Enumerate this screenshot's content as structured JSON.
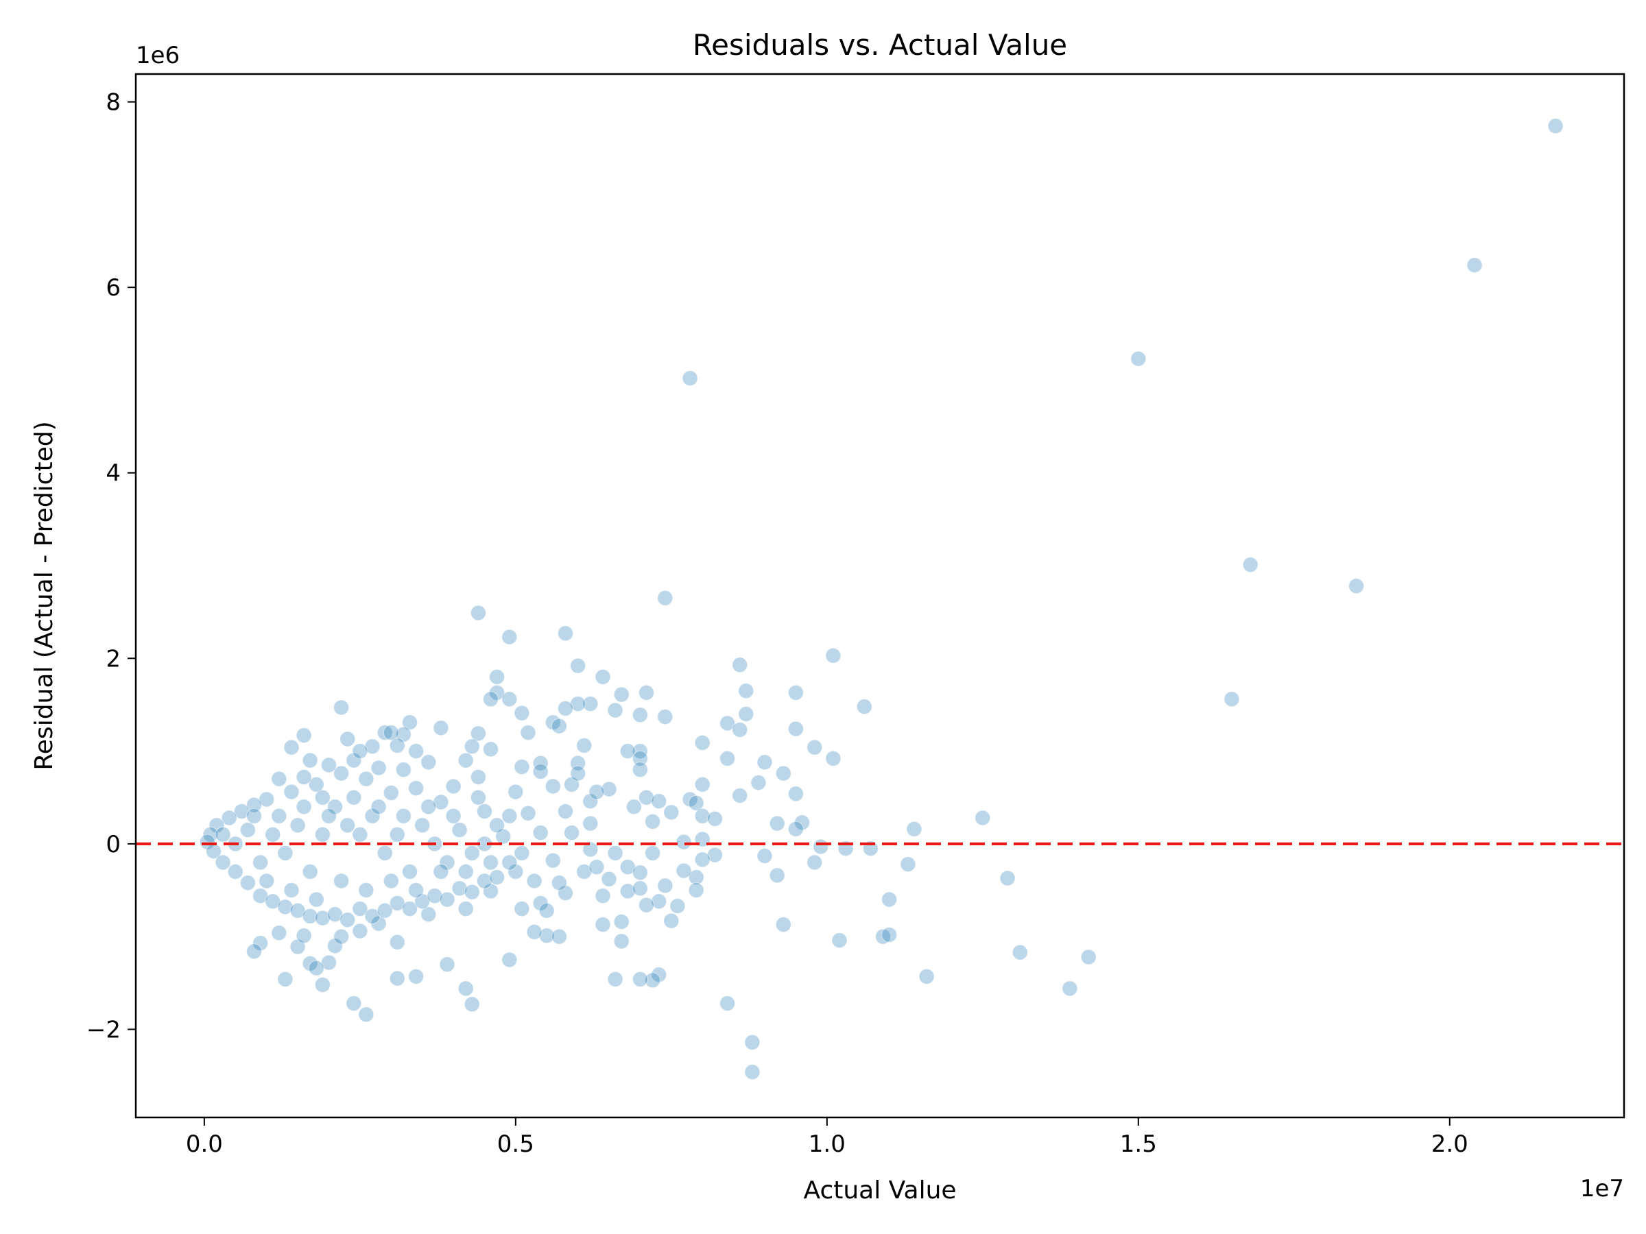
{
  "chart_data": {
    "type": "scatter",
    "title": "Residuals vs. Actual Value",
    "xlabel": "Actual Value",
    "ylabel": "Residual (Actual - Predicted)",
    "x_offset_label": "1e7",
    "y_offset_label": "1e6",
    "xlim": [
      -1100000,
      22800000
    ],
    "ylim": [
      -2950000,
      8300000
    ],
    "x_ticks": [
      {
        "value": 0,
        "label": "0.0"
      },
      {
        "value": 5000000,
        "label": "0.5"
      },
      {
        "value": 10000000,
        "label": "1.0"
      },
      {
        "value": 15000000,
        "label": "1.5"
      },
      {
        "value": 20000000,
        "label": "2.0"
      }
    ],
    "y_ticks": [
      {
        "value": -2000000,
        "label": "−2"
      },
      {
        "value": 0,
        "label": "0"
      },
      {
        "value": 2000000,
        "label": "2"
      },
      {
        "value": 4000000,
        "label": "4"
      },
      {
        "value": 6000000,
        "label": "6"
      },
      {
        "value": 8000000,
        "label": "8"
      }
    ],
    "grid": false,
    "point_color": "#1f77b4",
    "point_opacity": 0.3,
    "reference_line": {
      "y": 0,
      "color": "#ee1111",
      "style": "dashed"
    },
    "points": [
      [
        21700000,
        7740000
      ],
      [
        20400000,
        6240000
      ],
      [
        15000000,
        5230000
      ],
      [
        7800000,
        5020000
      ],
      [
        16800000,
        3010000
      ],
      [
        18500000,
        2780000
      ],
      [
        16500000,
        1560000
      ],
      [
        7400000,
        2650000
      ],
      [
        4400000,
        2490000
      ],
      [
        5800000,
        2270000
      ],
      [
        4900000,
        2230000
      ],
      [
        10100000,
        2030000
      ],
      [
        8600000,
        1930000
      ],
      [
        6000000,
        1920000
      ],
      [
        6400000,
        1800000
      ],
      [
        4700000,
        1800000
      ],
      [
        8700000,
        1650000
      ],
      [
        7100000,
        1630000
      ],
      [
        9500000,
        1630000
      ],
      [
        4700000,
        1630000
      ],
      [
        6700000,
        1610000
      ],
      [
        4600000,
        1560000
      ],
      [
        4900000,
        1560000
      ],
      [
        6200000,
        1510000
      ],
      [
        6000000,
        1510000
      ],
      [
        5800000,
        1460000
      ],
      [
        10600000,
        1480000
      ],
      [
        2200000,
        1470000
      ],
      [
        5100000,
        1410000
      ],
      [
        7000000,
        1390000
      ],
      [
        7400000,
        1370000
      ],
      [
        8700000,
        1400000
      ],
      [
        6600000,
        1440000
      ],
      [
        5600000,
        1310000
      ],
      [
        3300000,
        1310000
      ],
      [
        8400000,
        1300000
      ],
      [
        3800000,
        1250000
      ],
      [
        8600000,
        1230000
      ],
      [
        9500000,
        1240000
      ],
      [
        5700000,
        1270000
      ],
      [
        2900000,
        1200000
      ],
      [
        4400000,
        1190000
      ],
      [
        5200000,
        1200000
      ],
      [
        1600000,
        1170000
      ],
      [
        3200000,
        1180000
      ],
      [
        2300000,
        1130000
      ],
      [
        8000000,
        1090000
      ],
      [
        9800000,
        1040000
      ],
      [
        2700000,
        1050000
      ],
      [
        3100000,
        1060000
      ],
      [
        6100000,
        1060000
      ],
      [
        1400000,
        1040000
      ],
      [
        3400000,
        1000000
      ],
      [
        7000000,
        1000000
      ],
      [
        6800000,
        1000000
      ],
      [
        4300000,
        1050000
      ],
      [
        4600000,
        1020000
      ],
      [
        10100000,
        920000
      ],
      [
        8400000,
        920000
      ],
      [
        7000000,
        920000
      ],
      [
        9000000,
        880000
      ],
      [
        5400000,
        870000
      ],
      [
        6000000,
        870000
      ],
      [
        7000000,
        800000
      ],
      [
        9300000,
        760000
      ],
      [
        8900000,
        660000
      ],
      [
        8000000,
        640000
      ],
      [
        6500000,
        590000
      ],
      [
        8600000,
        520000
      ],
      [
        9500000,
        540000
      ],
      [
        7100000,
        500000
      ],
      [
        7800000,
        480000
      ],
      [
        7300000,
        460000
      ],
      [
        7900000,
        440000
      ],
      [
        6900000,
        400000
      ],
      [
        6200000,
        460000
      ],
      [
        5600000,
        620000
      ],
      [
        5900000,
        640000
      ],
      [
        7500000,
        340000
      ],
      [
        8000000,
        300000
      ],
      [
        8200000,
        270000
      ],
      [
        7200000,
        240000
      ],
      [
        9200000,
        220000
      ],
      [
        9600000,
        230000
      ],
      [
        12500000,
        280000
      ],
      [
        11400000,
        160000
      ],
      [
        9500000,
        160000
      ],
      [
        8000000,
        50000
      ],
      [
        7700000,
        20000
      ],
      [
        9900000,
        -30000
      ],
      [
        10300000,
        -50000
      ],
      [
        10700000,
        -50000
      ],
      [
        9000000,
        -130000
      ],
      [
        8200000,
        -120000
      ],
      [
        9800000,
        -200000
      ],
      [
        11300000,
        -220000
      ],
      [
        12900000,
        -370000
      ],
      [
        9200000,
        -340000
      ],
      [
        7900000,
        -360000
      ],
      [
        7700000,
        -290000
      ],
      [
        8000000,
        -170000
      ],
      [
        7200000,
        -100000
      ],
      [
        7400000,
        -450000
      ],
      [
        6800000,
        -510000
      ],
      [
        7300000,
        -620000
      ],
      [
        7600000,
        -670000
      ],
      [
        7100000,
        -660000
      ],
      [
        7000000,
        -480000
      ],
      [
        7900000,
        -500000
      ],
      [
        11000000,
        -600000
      ],
      [
        6400000,
        -560000
      ],
      [
        6700000,
        -840000
      ],
      [
        7500000,
        -830000
      ],
      [
        6400000,
        -870000
      ],
      [
        9300000,
        -870000
      ],
      [
        10900000,
        -1000000
      ],
      [
        11000000,
        -980000
      ],
      [
        10200000,
        -1040000
      ],
      [
        6700000,
        -1050000
      ],
      [
        5500000,
        -990000
      ],
      [
        5700000,
        -1000000
      ],
      [
        5300000,
        -950000
      ],
      [
        13100000,
        -1170000
      ],
      [
        14200000,
        -1220000
      ],
      [
        4900000,
        -1250000
      ],
      [
        3900000,
        -1300000
      ],
      [
        7300000,
        -1410000
      ],
      [
        11600000,
        -1430000
      ],
      [
        7200000,
        -1470000
      ],
      [
        6600000,
        -1460000
      ],
      [
        7000000,
        -1460000
      ],
      [
        3100000,
        -1450000
      ],
      [
        3400000,
        -1430000
      ],
      [
        1300000,
        -1460000
      ],
      [
        13900000,
        -1560000
      ],
      [
        4200000,
        -1560000
      ],
      [
        1900000,
        -1520000
      ],
      [
        8400000,
        -1720000
      ],
      [
        4300000,
        -1730000
      ],
      [
        2400000,
        -1720000
      ],
      [
        2600000,
        -1840000
      ],
      [
        8800000,
        -2140000
      ],
      [
        8800000,
        -2460000
      ],
      [
        1700000,
        -1290000
      ],
      [
        2000000,
        -1280000
      ],
      [
        1800000,
        -1340000
      ],
      [
        2100000,
        -1100000
      ],
      [
        1500000,
        -1110000
      ],
      [
        1600000,
        -990000
      ],
      [
        900000,
        -1070000
      ],
      [
        1200000,
        -960000
      ],
      [
        800000,
        -1160000
      ],
      [
        2200000,
        -1000000
      ],
      [
        2500000,
        -940000
      ],
      [
        2800000,
        -860000
      ],
      [
        3100000,
        -1060000
      ],
      [
        3600000,
        -760000
      ],
      [
        4200000,
        -700000
      ],
      [
        4600000,
        -510000
      ],
      [
        5100000,
        -700000
      ],
      [
        5400000,
        -640000
      ],
      [
        5500000,
        -720000
      ],
      [
        5800000,
        -530000
      ],
      [
        5700000,
        -420000
      ],
      [
        6100000,
        -300000
      ],
      [
        6300000,
        -250000
      ],
      [
        6500000,
        -380000
      ],
      [
        6800000,
        -250000
      ],
      [
        7000000,
        -310000
      ],
      [
        6600000,
        -100000
      ],
      [
        6200000,
        -60000
      ],
      [
        5900000,
        120000
      ],
      [
        6200000,
        220000
      ],
      [
        5800000,
        350000
      ],
      [
        6300000,
        560000
      ],
      [
        6000000,
        760000
      ],
      [
        5400000,
        780000
      ],
      [
        5100000,
        830000
      ],
      [
        5000000,
        560000
      ],
      [
        5200000,
        330000
      ],
      [
        5400000,
        120000
      ],
      [
        5600000,
        -180000
      ],
      [
        5300000,
        -400000
      ],
      [
        5000000,
        -300000
      ],
      [
        4800000,
        80000
      ],
      [
        4500000,
        350000
      ],
      [
        4400000,
        720000
      ],
      [
        4200000,
        900000
      ],
      [
        4000000,
        620000
      ],
      [
        3800000,
        450000
      ],
      [
        3600000,
        880000
      ],
      [
        3400000,
        600000
      ],
      [
        3200000,
        800000
      ],
      [
        3000000,
        550000
      ],
      [
        2800000,
        820000
      ],
      [
        2600000,
        700000
      ],
      [
        2400000,
        900000
      ],
      [
        2200000,
        760000
      ],
      [
        2000000,
        850000
      ],
      [
        1800000,
        640000
      ],
      [
        1600000,
        720000
      ],
      [
        1400000,
        560000
      ],
      [
        1200000,
        700000
      ],
      [
        1000000,
        480000
      ],
      [
        800000,
        420000
      ],
      [
        600000,
        350000
      ],
      [
        400000,
        280000
      ],
      [
        200000,
        200000
      ],
      [
        100000,
        100000
      ],
      [
        50000,
        20000
      ],
      [
        150000,
        -80000
      ],
      [
        300000,
        -200000
      ],
      [
        500000,
        -300000
      ],
      [
        700000,
        -420000
      ],
      [
        900000,
        -560000
      ],
      [
        1100000,
        -620000
      ],
      [
        1300000,
        -680000
      ],
      [
        1500000,
        -720000
      ],
      [
        1700000,
        -780000
      ],
      [
        1900000,
        -800000
      ],
      [
        2100000,
        -760000
      ],
      [
        2300000,
        -820000
      ],
      [
        2500000,
        -700000
      ],
      [
        2700000,
        -780000
      ],
      [
        2900000,
        -720000
      ],
      [
        3100000,
        -640000
      ],
      [
        3300000,
        -700000
      ],
      [
        3500000,
        -620000
      ],
      [
        3700000,
        -560000
      ],
      [
        3900000,
        -600000
      ],
      [
        4100000,
        -480000
      ],
      [
        4300000,
        -520000
      ],
      [
        4500000,
        -400000
      ],
      [
        4700000,
        -360000
      ],
      [
        4900000,
        -200000
      ],
      [
        5100000,
        -100000
      ],
      [
        3000000,
        1200000
      ],
      [
        2500000,
        1000000
      ],
      [
        1700000,
        900000
      ],
      [
        1900000,
        500000
      ],
      [
        2100000,
        400000
      ],
      [
        2300000,
        200000
      ],
      [
        2500000,
        100000
      ],
      [
        2700000,
        300000
      ],
      [
        2900000,
        -100000
      ],
      [
        3100000,
        100000
      ],
      [
        3300000,
        -300000
      ],
      [
        3500000,
        200000
      ],
      [
        3700000,
        0
      ],
      [
        3900000,
        -200000
      ],
      [
        4100000,
        150000
      ],
      [
        4300000,
        -100000
      ],
      [
        4500000,
        0
      ],
      [
        4700000,
        200000
      ],
      [
        4900000,
        300000
      ],
      [
        1100000,
        100000
      ],
      [
        1300000,
        -100000
      ],
      [
        1500000,
        200000
      ],
      [
        1700000,
        -300000
      ],
      [
        1900000,
        100000
      ],
      [
        900000,
        -200000
      ],
      [
        700000,
        150000
      ],
      [
        500000,
        0
      ],
      [
        300000,
        100000
      ],
      [
        800000,
        300000
      ],
      [
        1000000,
        -400000
      ],
      [
        1200000,
        300000
      ],
      [
        1400000,
        -500000
      ],
      [
        1600000,
        400000
      ],
      [
        1800000,
        -600000
      ],
      [
        2000000,
        300000
      ],
      [
        2200000,
        -400000
      ],
      [
        2400000,
        500000
      ],
      [
        2600000,
        -500000
      ],
      [
        2800000,
        400000
      ],
      [
        3000000,
        -400000
      ],
      [
        3200000,
        300000
      ],
      [
        3400000,
        -500000
      ],
      [
        3600000,
        400000
      ],
      [
        3800000,
        -300000
      ],
      [
        4000000,
        300000
      ],
      [
        4200000,
        -300000
      ],
      [
        4400000,
        500000
      ],
      [
        4600000,
        -200000
      ]
    ]
  }
}
